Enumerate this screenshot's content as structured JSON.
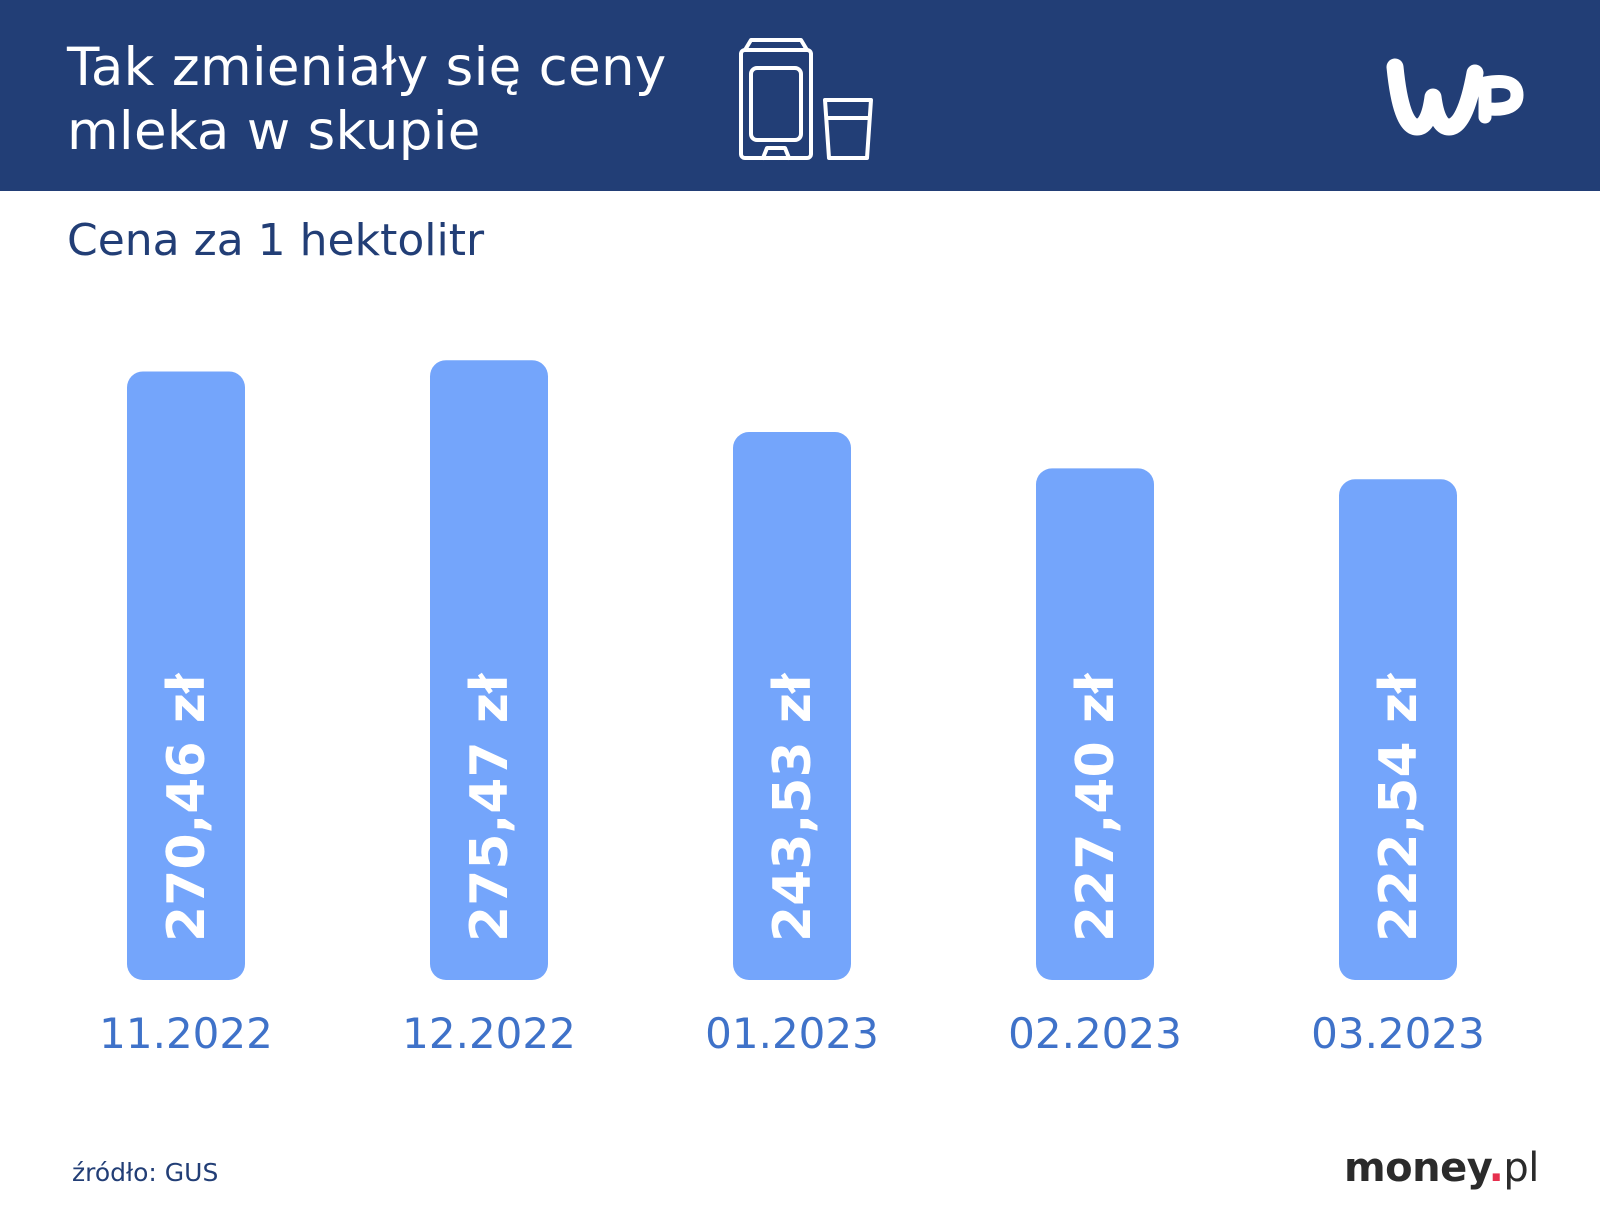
{
  "header": {
    "title_line1": "Tak zmieniały się ceny",
    "title_line2": "mleka w skupie",
    "icon": "milk-carton-glass-icon",
    "logo": "WP"
  },
  "subtitle": "Cena za 1 hektolitr",
  "chart_data": {
    "type": "bar",
    "title": "Tak zmieniały się ceny mleka w skupie",
    "subtitle": "Cena za 1 hektolitr",
    "categories": [
      "11.2022",
      "12.2022",
      "01.2023",
      "02.2023",
      "03.2023"
    ],
    "values": [
      270.46,
      275.47,
      243.53,
      227.4,
      222.54
    ],
    "labels": [
      "270,46 zł",
      "275,47 zł",
      "243,53 zł",
      "227,40 zł",
      "222,54 zł"
    ],
    "unit": "zł",
    "ylim": [
      0,
      280
    ],
    "grid": false,
    "bar_color": "#74a5fb",
    "label_color": "#ffffff",
    "category_color": "#3f72c9"
  },
  "footer": {
    "source": "źródło: GUS",
    "brand_main": "money",
    "brand_dot": ".",
    "brand_tld": "pl"
  },
  "colors": {
    "header_bg": "#223e76",
    "accent_red": "#e6304e"
  }
}
